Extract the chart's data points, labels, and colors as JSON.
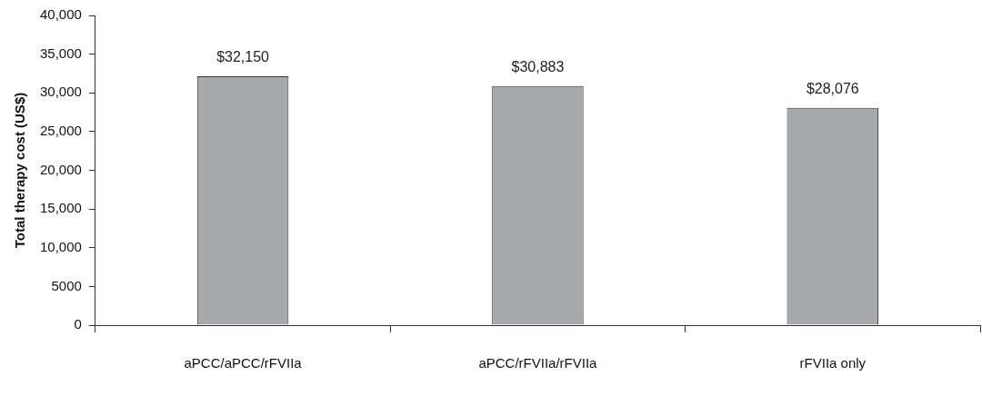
{
  "chart_data": {
    "type": "bar",
    "ylabel": "Total therapy cost (US$)",
    "categories": [
      "aPCC/aPCC/rFVIIa",
      "aPCC/rFVIIa/rFVIIa",
      "rFVIIa only"
    ],
    "values": [
      32150,
      30883,
      28076
    ],
    "value_labels": [
      "$32,150",
      "$30,883",
      "$28,076"
    ],
    "color": "#a7a9ac",
    "ylim": [
      0,
      40000
    ],
    "yticks": [
      0,
      5000,
      {
        "value": 10000,
        "label": "10,000"
      },
      {
        "value": 15000,
        "label": "15,000"
      },
      {
        "value": 20000,
        "label": "20,000"
      },
      {
        "value": 25000,
        "label": "25,000"
      },
      {
        "value": 30000,
        "label": "30,000"
      },
      {
        "value": 35000,
        "label": "35,000"
      },
      {
        "value": 40000,
        "label": "40,000"
      }
    ],
    "grid": false,
    "legend": false
  }
}
